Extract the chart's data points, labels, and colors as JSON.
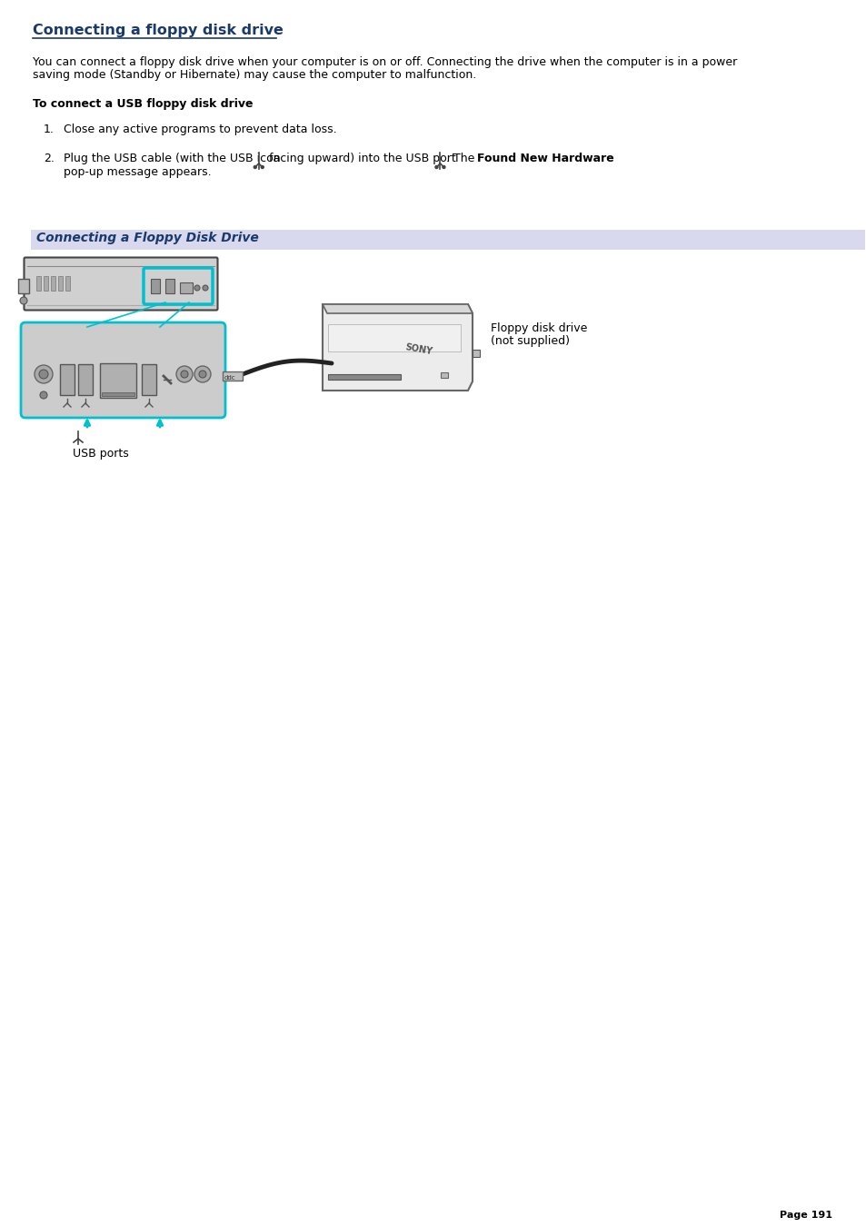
{
  "title": "Connecting a floppy disk drive",
  "title_color": "#1a3a6b",
  "bg_color": "#ffffff",
  "body_text1a": "You can connect a floppy disk drive when your computer is on or off. Connecting the drive when the computer is in a power",
  "body_text1b": "saving mode (Standby or Hibernate) may cause the computer to malfunction.",
  "section_header": "To connect a USB floppy disk drive",
  "item1": "Close any active programs to prevent data loss.",
  "item2_line1_pre": "Plug the USB cable (with the USB icon ",
  "item2_line1_mid": " facing upward) into the USB port ",
  "item2_line1_post1": ". The ",
  "item2_line1_bold": "Found New Hardware",
  "item2_line2": "pop-up message appears.",
  "diagram_label": "Connecting a Floppy Disk Drive",
  "diagram_label_color": "#1a3a6b",
  "diagram_bg_color": "#d8d8ee",
  "usb_ports_label": "USB ports",
  "floppy_label1": "Floppy disk drive",
  "floppy_label2": "(not supplied)",
  "page_number": "Page 191",
  "text_color": "#000000",
  "cyan_color": "#00c0d0",
  "laptop_fill": "#d8d8d8",
  "laptop_edge": "#444444",
  "panel_fill": "#c8c8c8",
  "panel_edge": "#00b8cc"
}
